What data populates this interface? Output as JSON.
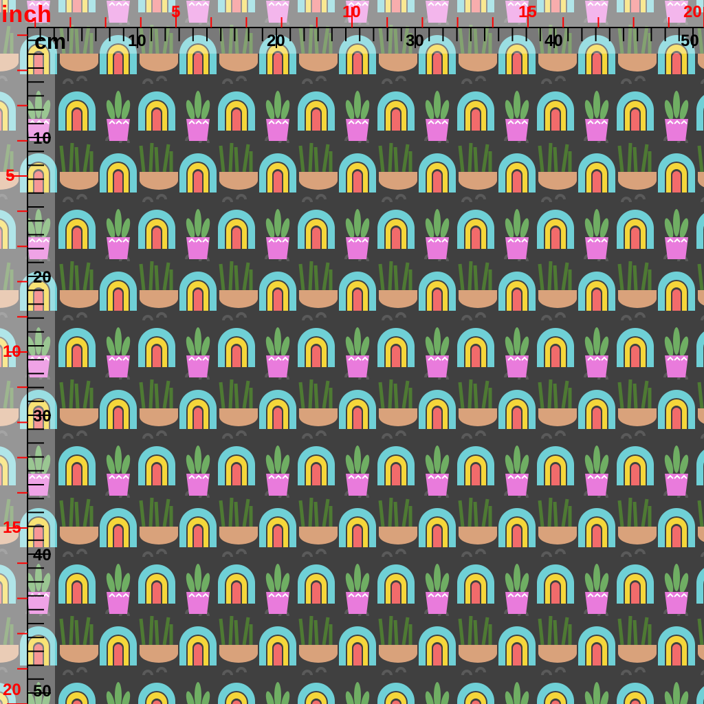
{
  "units": {
    "inch": "inch",
    "cm": "cm"
  },
  "top_ruler": {
    "inch_labels": [
      "5",
      "10",
      "15",
      "20"
    ],
    "cm_labels": [
      "10",
      "20",
      "30",
      "40",
      "50"
    ]
  },
  "left_ruler": {
    "inch_labels": [
      "5",
      "10",
      "15",
      "20"
    ],
    "cm_labels": [
      "10",
      "20",
      "30",
      "40",
      "50"
    ]
  },
  "pattern": {
    "motifs": [
      "rainbow",
      "potted-cactus",
      "grass-basket"
    ],
    "colors": {
      "background": "#404040",
      "rainbow_outer": "#6fd0d6",
      "rainbow_mid": "#f5d63a",
      "rainbow_inner": "#f26b6b",
      "cactus": "#6fae63",
      "pot_pink": "#e97bdc",
      "grass": "#4e7a33",
      "basket": "#d9a27b",
      "ruler_red": "#ff0000"
    }
  }
}
